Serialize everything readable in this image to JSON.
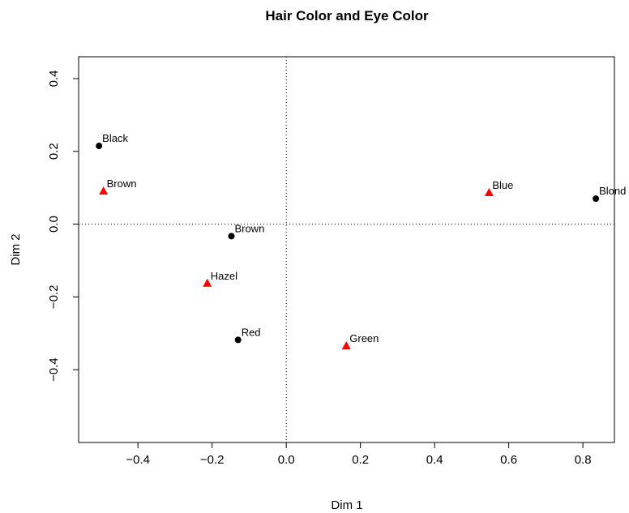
{
  "chart_data": {
    "type": "scatter",
    "title": "Hair Color and Eye Color",
    "xlabel": "Dim 1",
    "ylabel": "Dim 2",
    "xlim": [
      -0.56,
      0.885
    ],
    "ylim": [
      -0.6,
      0.46
    ],
    "x_ticks": [
      -0.4,
      -0.2,
      0.0,
      0.2,
      0.4,
      0.6,
      0.8
    ],
    "x_tick_labels": [
      "−0.4",
      "−0.2",
      "0.0",
      "0.2",
      "0.4",
      "0.6",
      "0.8"
    ],
    "y_ticks": [
      -0.4,
      -0.2,
      0.0,
      0.2,
      0.4
    ],
    "y_tick_labels": [
      "−0.4",
      "−0.2",
      "0.0",
      "0.2",
      "0.4"
    ],
    "reference_lines": {
      "x": 0,
      "y": 0,
      "style": "dotted"
    },
    "series": [
      {
        "marker": "circle",
        "color": "#000000",
        "points": [
          {
            "label": "Black",
            "x": -0.505,
            "y": 0.215
          },
          {
            "label": "Brown",
            "x": -0.148,
            "y": -0.033
          },
          {
            "label": "Red",
            "x": -0.13,
            "y": -0.318
          },
          {
            "label": "Blond",
            "x": 0.835,
            "y": 0.07
          }
        ]
      },
      {
        "marker": "triangle",
        "color": "#ff0000",
        "points": [
          {
            "label": "Brown",
            "x": -0.493,
            "y": 0.09
          },
          {
            "label": "Hazel",
            "x": -0.213,
            "y": -0.163
          },
          {
            "label": "Green",
            "x": 0.162,
            "y": -0.335
          },
          {
            "label": "Blue",
            "x": 0.547,
            "y": 0.086
          }
        ]
      }
    ]
  }
}
